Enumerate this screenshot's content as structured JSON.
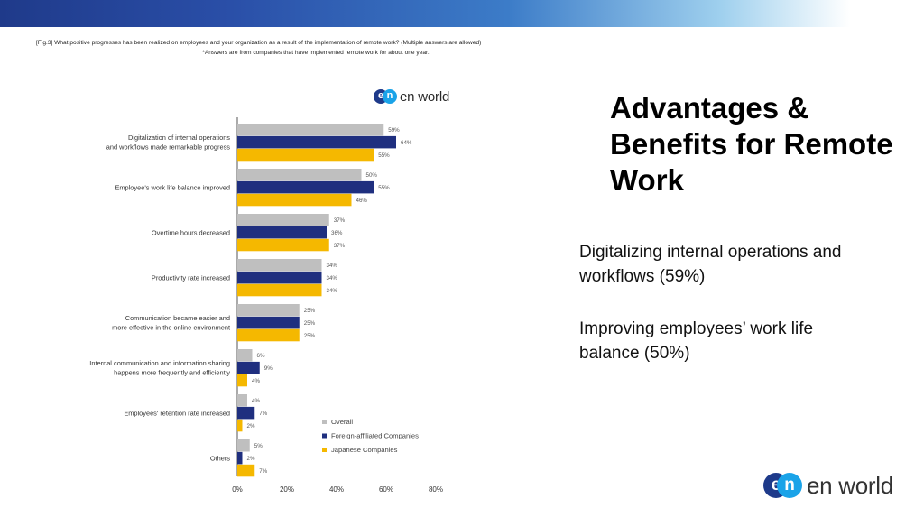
{
  "caption": {
    "line1": "[Fig.3] What positive progresses has been realized on employees and your organization as a result of the implementation of remote work? (Multiple answers are allowed)",
    "line2": "*Answers are from companies that have implemented remote work for about one year."
  },
  "logo": {
    "mark_e": "e",
    "mark_n": "n",
    "text": "en world"
  },
  "slide": {
    "title": "Advantages & Benefits for Remote Work",
    "point1": "Digitalizing internal operations and workflows (59%)",
    "point2": "Improving employees’ work life balance (50%)"
  },
  "chart_data": {
    "type": "bar",
    "orientation": "horizontal",
    "categories": [
      [
        "Digitalization of internal operations",
        "and workflows made remarkable progress"
      ],
      [
        "Employee's work life balance improved"
      ],
      [
        "Overtime hours decreased"
      ],
      [
        "Productivity rate increased"
      ],
      [
        "Communication became easier and",
        "more effective in the online environment"
      ],
      [
        "Internal communication and information sharing",
        "happens more frequently and efficiently"
      ],
      [
        "Employees' retention rate increased"
      ],
      [
        "Others"
      ]
    ],
    "series": [
      {
        "name": "Overall",
        "color": "#bfbfbf",
        "values": [
          59,
          50,
          37,
          34,
          25,
          6,
          4,
          5
        ]
      },
      {
        "name": "Foreign-affiliated Companies",
        "color": "#1f2f7f",
        "values": [
          64,
          55,
          36,
          34,
          25,
          9,
          7,
          2
        ]
      },
      {
        "name": "Japanese Companies",
        "color": "#f5b800",
        "values": [
          55,
          46,
          37,
          34,
          25,
          4,
          2,
          7
        ]
      }
    ],
    "xlim": [
      0,
      80
    ],
    "xticks": [
      0,
      20,
      40,
      60,
      80
    ],
    "xtick_labels": [
      "0%",
      "20%",
      "40%",
      "60%",
      "80%"
    ],
    "value_suffix": "%",
    "legend_position": "bottom-right",
    "grid": false
  }
}
